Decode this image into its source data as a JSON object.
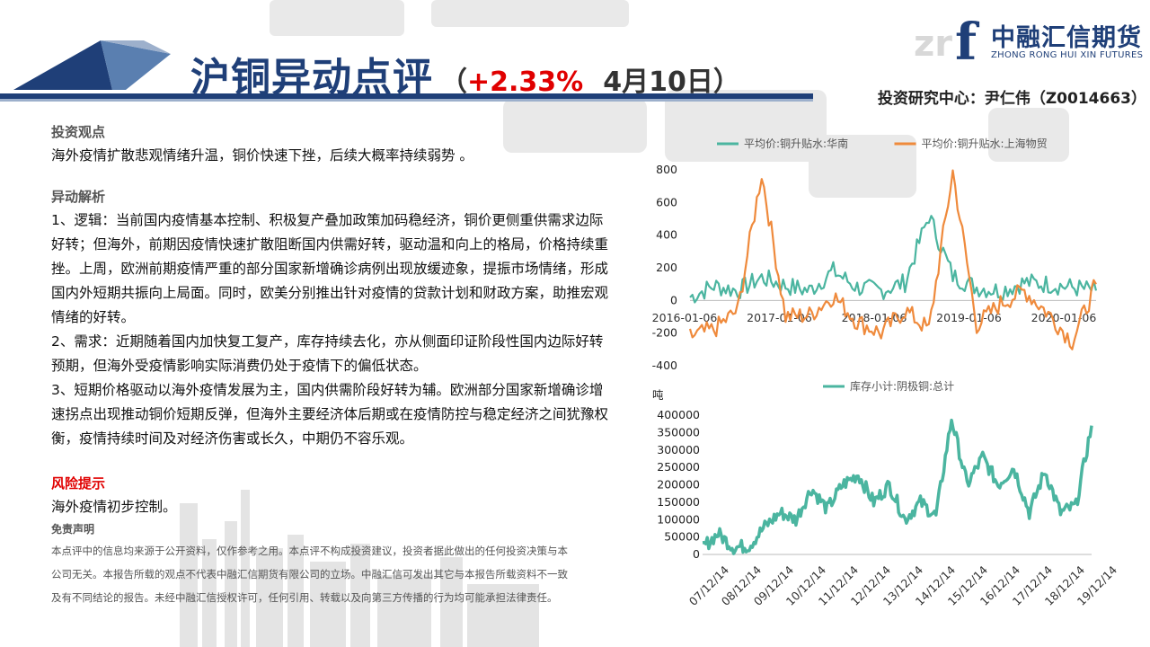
{
  "header": {
    "title_main": "沪铜异动点评",
    "title_paren_open": "（",
    "title_change": "+2.33%",
    "title_date": "4月10日",
    "title_paren_close": "）",
    "analyst": "投资研究中心：尹仁伟（Z0014663）"
  },
  "logo": {
    "name": "中融汇信期货",
    "english": "ZHONG RONG HUI XIN FUTURES",
    "mark": "f"
  },
  "content": {
    "viewpoint_title": "投资观点",
    "viewpoint_text": "海外疫情扩散悲观情绪升温，铜价快速下挫，后续大概率持续弱势  。",
    "analysis_title": "异动解析",
    "analysis_points": [
      "1、逻辑：当前国内疫情基本控制、积极复产叠加政策加码稳经济，铜价更侧重供需求边际好转；但海外，前期因疫情快速扩散阻断国内供需好转，驱动温和向上的格局，价格持续重挫。上周，欧洲前期疫情严重的部分国家新增确诊病例出现放缓迹象，提振市场情绪，形成国内外短期共振向上局面。同时，欧美分别推出针对疫情的贷款计划和财政方案，助推宏观情绪的好转。",
      "2、需求：近期随着国内加快复工复产，库存持续去化，亦从侧面印证阶段性国内边际好转预期，但海外受疫情影响实际消费仍处于疫情下的偏低状态。",
      "3、短期价格驱动以海外疫情发展为主，国内供需阶段好转为辅。欧洲部分国家新增确诊增速拐点出现推动铜价短期反弹，但海外主要经济体后期或在疫情防控与稳定经济之间犹豫权衡，疫情持续时间及对经济伤害或长久，中期仍不容乐观。"
    ],
    "risk_title": "风险提示",
    "risk_text": "海外疫情初步控制。",
    "disclaimer_title": "免责声明",
    "disclaimer_text": "本点评中的信息均来源于公开资料，仅作参考之用。本点评不构成投资建议，投资者据此做出的任何投资决策与本公司无关。本报告所载的观点不代表中融汇信期货有限公司的立场。中融汇信可发出其它与本报告所载资料不一致及有不同结论的报告。未经中融汇信授权许可，任何引用、转载以及向第三方传播的行为均可能承担法律责任。"
  },
  "colors": {
    "navy": "#1f3f78",
    "teal": "#4bb5a0",
    "orange": "#ef8a3c",
    "red": "#e00000"
  },
  "chart_data": [
    {
      "type": "line",
      "title": "",
      "xlabel": "",
      "ylabel": "",
      "ylim": [
        -400,
        800
      ],
      "yticks": [
        -400,
        -200,
        0,
        200,
        400,
        600,
        800
      ],
      "x_tick_labels": [
        "2016-01-06",
        "2017-01-06",
        "2018-01-06",
        "2019-01-06",
        "2020-01-06"
      ],
      "x": [
        "2016-01",
        "2016-04",
        "2016-07",
        "2016-10",
        "2017-01",
        "2017-04",
        "2017-07",
        "2017-10",
        "2018-01",
        "2018-04",
        "2018-07",
        "2018-10",
        "2019-01",
        "2019-04",
        "2019-07",
        "2019-10",
        "2020-01",
        "2020-04"
      ],
      "legend": "top",
      "series": [
        {
          "name": "平均价:铜升贴水:华南",
          "color": "#4bb5a0",
          "values": [
            20,
            90,
            60,
            140,
            90,
            60,
            180,
            80,
            60,
            110,
            520,
            150,
            80,
            60,
            110,
            100,
            80,
            60
          ]
        },
        {
          "name": "平均价:铜升贴水:上海物贸",
          "color": "#ef8a3c",
          "values": [
            -220,
            -180,
            -60,
            780,
            -100,
            -90,
            30,
            -130,
            -200,
            -60,
            -180,
            790,
            -150,
            -20,
            60,
            -80,
            -250,
            100
          ]
        }
      ]
    },
    {
      "type": "line",
      "title": "",
      "xlabel": "",
      "ylabel": "吨",
      "ylim": [
        0,
        400000
      ],
      "yticks": [
        0,
        50000,
        100000,
        150000,
        200000,
        250000,
        300000,
        350000,
        400000
      ],
      "x_tick_labels": [
        "07/12/14",
        "08/12/14",
        "09/12/14",
        "10/12/14",
        "11/12/14",
        "12/12/14",
        "13/12/14",
        "14/12/14",
        "15/12/14",
        "16/12/14",
        "17/12/14",
        "18/12/14",
        "19/12/14"
      ],
      "x": [
        "07/12",
        "08/06",
        "08/12",
        "09/06",
        "09/12",
        "10/06",
        "10/12",
        "11/06",
        "11/12",
        "12/06",
        "12/12",
        "13/06",
        "13/12",
        "14/06",
        "14/12",
        "15/06",
        "15/12",
        "16/06",
        "16/12",
        "17/06",
        "17/12",
        "18/06",
        "18/12",
        "19/06",
        "19/12",
        "20/03"
      ],
      "legend": "top",
      "series": [
        {
          "name": "库存小计:阴极铜:总计",
          "color": "#4bb5a0",
          "values": [
            20000,
            60000,
            20000,
            25000,
            80000,
            120000,
            100000,
            190000,
            130000,
            200000,
            230000,
            150000,
            200000,
            100000,
            150000,
            110000,
            390000,
            200000,
            280000,
            200000,
            250000,
            120000,
            240000,
            120000,
            140000,
            370000
          ]
        }
      ]
    }
  ]
}
